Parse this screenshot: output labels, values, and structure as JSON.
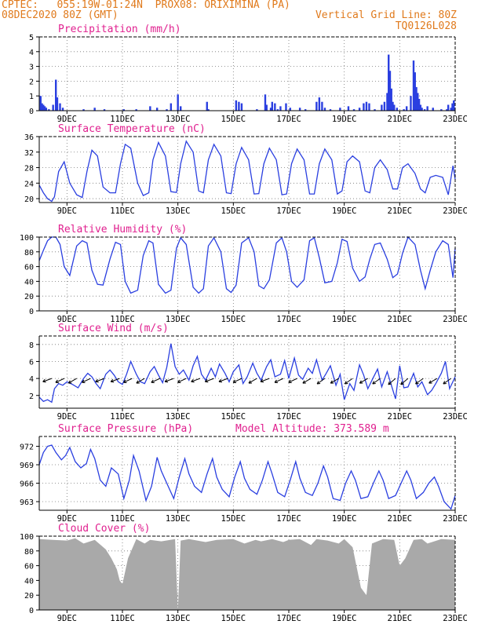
{
  "header": {
    "line1": "CPTEC:   055:19W-01:24N  PROX08: ORIXIMINA (PA)",
    "line2": "08DEC2020 80Z (GMT)",
    "grid_note": "Vertical Grid Line: 80Z",
    "code": "TQ0126L028"
  },
  "colors": {
    "header": "#e07a1c",
    "title": "#e0208f",
    "series": "#2a3fe0",
    "cloud": "#a9a9a9",
    "grid": "#777777"
  },
  "x_axis": {
    "unit": "day of December 2020 (fractional)",
    "range": [
      8.0,
      23.0
    ],
    "ticks": [
      9,
      11,
      13,
      15,
      17,
      19,
      21,
      23
    ],
    "tick_labels": [
      "9DEC",
      "11DEC",
      "13DEC",
      "15DEC",
      "17DEC",
      "19DEC",
      "21DEC",
      "23DEC"
    ]
  },
  "chart_data": [
    {
      "id": "precip",
      "type": "bar",
      "title": "Precipitation (mm/h)",
      "xlabel": "",
      "ylabel": "",
      "ylim": [
        0,
        5
      ],
      "yticks": [
        0,
        1,
        2,
        3,
        4,
        5
      ],
      "grid": true,
      "x": [
        8.05,
        8.1,
        8.15,
        8.2,
        8.25,
        8.35,
        8.5,
        8.6,
        8.65,
        8.75,
        8.85,
        9.6,
        10.0,
        10.35,
        11.05,
        11.5,
        12.0,
        12.25,
        12.6,
        12.75,
        13.0,
        13.1,
        14.05,
        14.1,
        15.1,
        15.2,
        15.3,
        15.85,
        16.15,
        16.2,
        16.35,
        16.4,
        16.5,
        16.6,
        16.7,
        16.9,
        17.05,
        17.4,
        17.6,
        18.0,
        18.1,
        18.2,
        18.3,
        18.5,
        18.85,
        19.15,
        19.35,
        19.55,
        19.7,
        19.8,
        19.9,
        20.1,
        20.35,
        20.45,
        20.55,
        20.6,
        20.65,
        20.7,
        20.75,
        20.8,
        20.9,
        21.15,
        21.25,
        21.4,
        21.5,
        21.55,
        21.6,
        21.65,
        21.7,
        21.75,
        21.8,
        21.9,
        22.0,
        22.2,
        22.5,
        22.7,
        22.75,
        22.85,
        22.9,
        22.95
      ],
      "values": [
        1.0,
        0.5,
        0.4,
        0.3,
        0.2,
        0.1,
        0.4,
        2.1,
        0.9,
        0.5,
        0.2,
        0.1,
        0.2,
        0.1,
        0.1,
        0.1,
        0.3,
        0.2,
        0.1,
        0.5,
        1.1,
        0.3,
        0.6,
        0.1,
        0.7,
        0.6,
        0.5,
        0.1,
        1.1,
        0.4,
        0.2,
        0.6,
        0.5,
        0.1,
        0.3,
        0.5,
        0.2,
        0.2,
        0.1,
        0.6,
        0.9,
        0.6,
        0.2,
        0.1,
        0.2,
        0.3,
        0.1,
        0.2,
        0.5,
        0.6,
        0.5,
        0.1,
        0.4,
        0.6,
        1.2,
        3.8,
        2.7,
        1.5,
        0.6,
        0.4,
        0.2,
        0.1,
        0.3,
        1.0,
        3.4,
        2.6,
        1.6,
        1.2,
        0.8,
        0.4,
        0.2,
        0.1,
        0.3,
        0.2,
        0.1,
        0.1,
        0.4,
        0.2,
        0.5,
        0.7
      ]
    },
    {
      "id": "temp",
      "type": "line",
      "title": "Surface Temperature (nC)",
      "xlabel": "",
      "ylabel": "",
      "ylim": [
        19,
        36
      ],
      "yticks": [
        20,
        24,
        28,
        32,
        36
      ],
      "grid": true,
      "x": [
        8.0,
        8.15,
        8.3,
        8.45,
        8.55,
        8.7,
        8.9,
        9.1,
        9.35,
        9.55,
        9.72,
        9.9,
        10.1,
        10.3,
        10.55,
        10.75,
        10.93,
        11.1,
        11.3,
        11.55,
        11.75,
        11.95,
        12.1,
        12.3,
        12.55,
        12.75,
        12.95,
        13.1,
        13.3,
        13.55,
        13.75,
        13.92,
        14.1,
        14.3,
        14.55,
        14.75,
        14.92,
        15.1,
        15.3,
        15.55,
        15.75,
        15.92,
        16.1,
        16.3,
        16.55,
        16.75,
        16.92,
        17.1,
        17.3,
        17.55,
        17.75,
        17.92,
        18.1,
        18.3,
        18.55,
        18.75,
        18.92,
        19.1,
        19.3,
        19.55,
        19.75,
        19.92,
        20.1,
        20.3,
        20.55,
        20.75,
        20.92,
        21.1,
        21.3,
        21.55,
        21.75,
        21.92,
        22.1,
        22.3,
        22.55,
        22.75,
        22.92,
        23.0
      ],
      "values": [
        23.5,
        21.5,
        20.0,
        19.3,
        20.5,
        27.0,
        29.5,
        24.0,
        21.0,
        20.3,
        27.0,
        32.5,
        31.0,
        23.0,
        21.5,
        21.5,
        29.0,
        34.0,
        33.0,
        24.0,
        20.8,
        21.5,
        30.0,
        34.5,
        31.0,
        21.8,
        21.6,
        29.0,
        34.8,
        32.0,
        22.0,
        21.5,
        30.0,
        34.0,
        31.0,
        21.5,
        21.3,
        29.0,
        33.2,
        30.0,
        21.2,
        21.3,
        29.0,
        33.0,
        30.0,
        21.0,
        21.2,
        29.0,
        32.8,
        30.0,
        21.2,
        21.2,
        29.0,
        32.8,
        30.0,
        21.2,
        22.0,
        29.5,
        31.0,
        29.5,
        22.0,
        21.5,
        28.0,
        30.0,
        27.5,
        22.5,
        22.5,
        28.0,
        29.0,
        26.5,
        22.5,
        21.5,
        25.5,
        26.0,
        25.5,
        21.0,
        28.5,
        25.0
      ]
    },
    {
      "id": "rh",
      "type": "line",
      "title": "Relative Humidity (%)",
      "xlabel": "",
      "ylabel": "",
      "ylim": [
        0,
        100
      ],
      "yticks": [
        0,
        20,
        40,
        60,
        80,
        100
      ],
      "grid": true,
      "x": [
        8.0,
        8.15,
        8.3,
        8.45,
        8.6,
        8.75,
        8.9,
        9.1,
        9.35,
        9.55,
        9.72,
        9.9,
        10.1,
        10.3,
        10.55,
        10.75,
        10.93,
        11.1,
        11.3,
        11.55,
        11.75,
        11.95,
        12.1,
        12.3,
        12.55,
        12.75,
        12.95,
        13.1,
        13.3,
        13.55,
        13.75,
        13.92,
        14.1,
        14.3,
        14.55,
        14.75,
        14.92,
        15.1,
        15.3,
        15.55,
        15.75,
        15.92,
        16.1,
        16.3,
        16.55,
        16.75,
        16.92,
        17.1,
        17.3,
        17.55,
        17.75,
        17.92,
        18.1,
        18.3,
        18.55,
        18.75,
        18.92,
        19.1,
        19.3,
        19.55,
        19.75,
        19.92,
        20.1,
        20.3,
        20.55,
        20.75,
        20.92,
        21.1,
        21.3,
        21.55,
        21.75,
        21.92,
        22.1,
        22.3,
        22.55,
        22.75,
        22.92,
        23.0
      ],
      "values": [
        68,
        82,
        95,
        100,
        100,
        90,
        60,
        48,
        88,
        95,
        92,
        55,
        36,
        35,
        70,
        93,
        90,
        40,
        24,
        28,
        75,
        95,
        92,
        36,
        24,
        28,
        85,
        99,
        90,
        32,
        24,
        30,
        88,
        99,
        80,
        30,
        25,
        35,
        92,
        99,
        80,
        34,
        30,
        42,
        92,
        99,
        80,
        40,
        32,
        42,
        95,
        99,
        72,
        38,
        40,
        65,
        97,
        94,
        58,
        40,
        46,
        70,
        90,
        92,
        70,
        45,
        50,
        78,
        100,
        90,
        55,
        30,
        55,
        80,
        95,
        90,
        45,
        85
      ]
    },
    {
      "id": "wind",
      "type": "line",
      "title": "Surface Wind (m/s)",
      "xlabel": "",
      "ylabel": "",
      "ylim": [
        0.5,
        9.0
      ],
      "yticks": [
        2,
        4,
        6,
        8
      ],
      "grid": true,
      "x": [
        8.0,
        8.15,
        8.3,
        8.45,
        8.55,
        8.7,
        8.85,
        9.0,
        9.2,
        9.4,
        9.6,
        9.75,
        9.9,
        10.05,
        10.2,
        10.4,
        10.55,
        10.7,
        10.85,
        11.0,
        11.15,
        11.3,
        11.5,
        11.65,
        11.8,
        12.0,
        12.15,
        12.3,
        12.45,
        12.6,
        12.75,
        12.9,
        13.05,
        13.2,
        13.4,
        13.55,
        13.7,
        13.85,
        14.0,
        14.2,
        14.35,
        14.5,
        14.7,
        14.85,
        15.0,
        15.2,
        15.35,
        15.5,
        15.7,
        15.85,
        16.0,
        16.2,
        16.35,
        16.5,
        16.7,
        16.85,
        17.0,
        17.2,
        17.35,
        17.5,
        17.7,
        17.85,
        18.0,
        18.2,
        18.35,
        18.5,
        18.7,
        18.85,
        19.0,
        19.2,
        19.35,
        19.55,
        19.7,
        19.85,
        20.0,
        20.2,
        20.35,
        20.55,
        20.7,
        20.85,
        21.0,
        21.15,
        21.3,
        21.5,
        21.65,
        21.8,
        22.0,
        22.15,
        22.3,
        22.5,
        22.65,
        22.8,
        23.0
      ],
      "values": [
        1.8,
        1.3,
        1.5,
        1.2,
        2.8,
        3.4,
        3.2,
        3.6,
        3.3,
        2.9,
        4.0,
        4.6,
        4.2,
        3.4,
        2.8,
        4.5,
        5.0,
        4.4,
        3.6,
        3.3,
        4.5,
        6.0,
        4.5,
        3.6,
        3.4,
        4.8,
        5.4,
        4.4,
        3.5,
        5.3,
        8.1,
        5.4,
        4.5,
        5.0,
        3.8,
        5.5,
        6.6,
        4.5,
        3.8,
        5.2,
        4.2,
        5.7,
        4.6,
        3.6,
        4.8,
        5.6,
        3.4,
        4.2,
        5.8,
        4.6,
        3.8,
        5.4,
        6.2,
        4.2,
        4.5,
        6.1,
        4.0,
        6.4,
        4.4,
        3.9,
        5.2,
        4.6,
        6.2,
        3.8,
        4.6,
        5.5,
        3.2,
        4.5,
        1.5,
        3.4,
        2.6,
        5.6,
        4.4,
        2.8,
        3.8,
        5.1,
        3.0,
        4.8,
        3.2,
        1.6,
        5.5,
        2.9,
        3.0,
        4.6,
        3.0,
        3.6,
        2.1,
        2.6,
        3.4,
        4.6,
        6.0,
        2.8,
        4.2
      ]
    },
    {
      "id": "wind_dir",
      "type": "scatter",
      "title": "",
      "xlabel": "",
      "ylabel": "",
      "note": "wind direction arrows drawn along 4 m/s line, pointing toward west-southwest",
      "x": [
        8.45,
        8.9,
        9.35,
        9.85,
        10.35,
        10.9,
        11.35,
        11.8,
        12.35,
        12.85,
        13.3,
        13.8,
        14.3,
        14.8,
        15.3,
        15.85,
        16.3,
        16.8,
        17.3,
        17.8,
        18.3,
        18.8,
        19.3,
        19.85,
        20.3,
        20.85,
        21.3,
        21.85,
        22.35,
        22.85
      ],
      "values": [
        4,
        4,
        4,
        4,
        4,
        4,
        4,
        4,
        4,
        4,
        4,
        4,
        4,
        4,
        4,
        4,
        4,
        4,
        4,
        4,
        4,
        4,
        4,
        4,
        4,
        4,
        4,
        4,
        4,
        4
      ],
      "direction_deg_from_east": [
        200,
        205,
        210,
        205,
        200,
        200,
        205,
        210,
        205,
        200,
        205,
        200,
        200,
        200,
        205,
        210,
        200,
        205,
        205,
        210,
        215,
        210,
        215,
        210,
        215,
        220,
        220,
        215,
        210,
        215
      ]
    },
    {
      "id": "pres",
      "type": "line",
      "title": "Surface Pressure (hPa)",
      "xlabel": "",
      "ylabel": "",
      "subtitle": "Model Altitude: 373.589  m",
      "ylim": [
        961.6,
        973.6
      ],
      "yticks": [
        963,
        966,
        969,
        972
      ],
      "grid": true,
      "x": [
        8.0,
        8.15,
        8.3,
        8.45,
        8.6,
        8.8,
        8.95,
        9.1,
        9.3,
        9.5,
        9.7,
        9.85,
        10.0,
        10.2,
        10.4,
        10.6,
        10.85,
        11.05,
        11.25,
        11.4,
        11.6,
        11.85,
        12.05,
        12.25,
        12.4,
        12.6,
        12.85,
        13.05,
        13.25,
        13.4,
        13.6,
        13.85,
        14.05,
        14.25,
        14.4,
        14.6,
        14.85,
        15.05,
        15.25,
        15.4,
        15.6,
        15.85,
        16.05,
        16.25,
        16.4,
        16.6,
        16.85,
        17.05,
        17.25,
        17.4,
        17.6,
        17.85,
        18.05,
        18.25,
        18.4,
        18.6,
        18.85,
        19.05,
        19.25,
        19.4,
        19.6,
        19.85,
        20.05,
        20.25,
        20.4,
        20.6,
        20.85,
        21.05,
        21.25,
        21.4,
        21.6,
        21.85,
        22.05,
        22.25,
        22.4,
        22.6,
        22.85,
        23.0
      ],
      "values": [
        969.0,
        971.0,
        972.0,
        972.2,
        971.0,
        969.8,
        970.5,
        971.8,
        969.5,
        968.5,
        969.2,
        971.5,
        970.0,
        966.5,
        965.5,
        968.5,
        967.5,
        963.5,
        966.5,
        970.5,
        968.0,
        963.2,
        965.5,
        970.2,
        968.0,
        966.0,
        963.5,
        967.0,
        970.0,
        967.5,
        965.5,
        964.5,
        967.5,
        970.0,
        967.0,
        965.0,
        963.8,
        967.0,
        969.5,
        966.8,
        965.0,
        964.2,
        966.5,
        969.5,
        967.5,
        964.5,
        963.8,
        966.5,
        969.5,
        966.8,
        964.5,
        964.0,
        966.0,
        968.8,
        967.0,
        963.5,
        963.2,
        966.0,
        968.0,
        966.5,
        963.5,
        963.8,
        966.0,
        968.0,
        966.5,
        963.5,
        964.0,
        966.0,
        968.0,
        966.5,
        963.5,
        964.5,
        966.0,
        967.0,
        965.5,
        963.0,
        961.8,
        964.0
      ]
    },
    {
      "id": "cloud",
      "type": "area",
      "title": "Cloud Cover (%)",
      "xlabel": "",
      "ylabel": "",
      "ylim": [
        0,
        100
      ],
      "yticks": [
        0,
        20,
        40,
        60,
        80,
        100
      ],
      "grid": true,
      "x": [
        8.0,
        8.5,
        9.0,
        9.3,
        9.6,
        10.0,
        10.4,
        10.6,
        10.8,
        10.9,
        11.0,
        11.2,
        11.5,
        11.8,
        12.0,
        12.4,
        12.9,
        13.0,
        13.1,
        13.4,
        14.0,
        14.4,
        15.0,
        15.4,
        15.8,
        16.0,
        16.4,
        16.8,
        17.0,
        17.4,
        17.8,
        18.0,
        18.4,
        18.8,
        19.0,
        19.3,
        19.6,
        19.8,
        20.0,
        20.4,
        20.8,
        21.0,
        21.2,
        21.5,
        21.8,
        22.0,
        22.5,
        23.0
      ],
      "values": [
        96,
        95,
        94,
        97,
        90,
        95,
        82,
        70,
        55,
        40,
        35,
        70,
        96,
        90,
        95,
        93,
        96,
        0,
        94,
        96,
        92,
        95,
        96,
        90,
        95,
        93,
        96,
        92,
        95,
        96,
        88,
        96,
        94,
        90,
        96,
        85,
        30,
        20,
        90,
        96,
        95,
        60,
        70,
        95,
        96,
        90,
        96,
        95
      ]
    }
  ]
}
